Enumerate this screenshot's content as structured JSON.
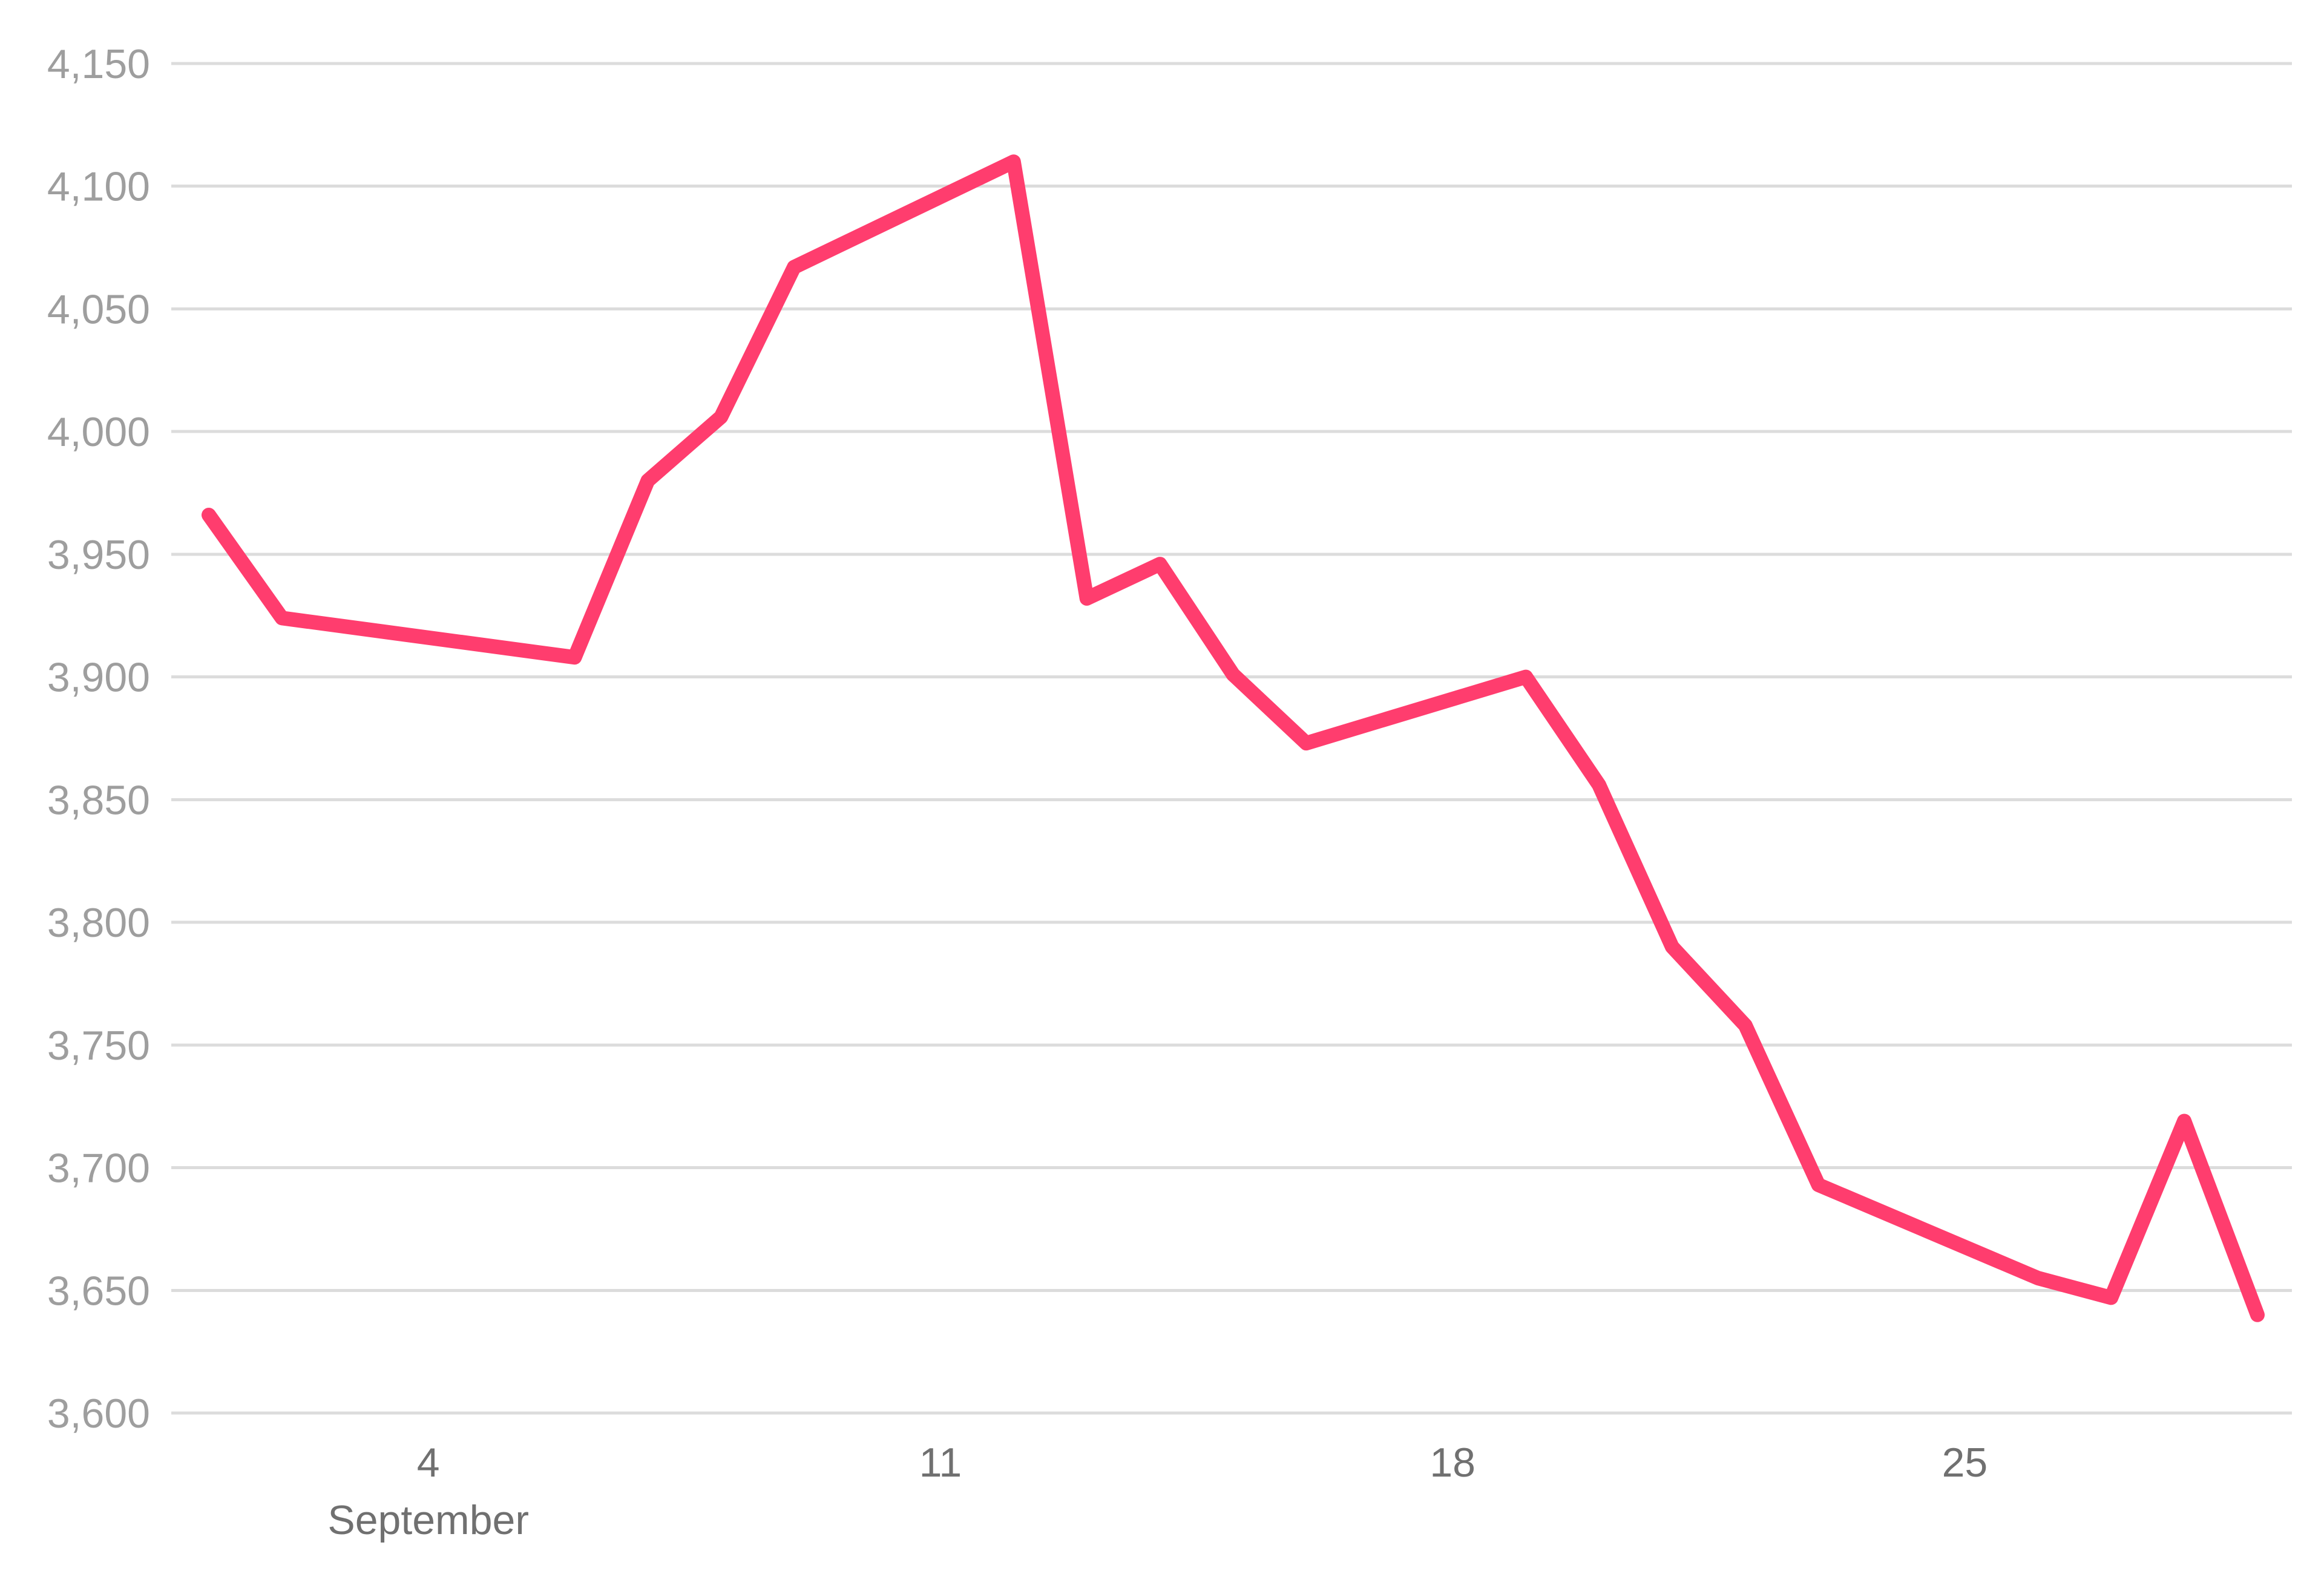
{
  "chart_data": {
    "type": "line",
    "title": "",
    "xlabel": "",
    "ylabel": "",
    "x_axis_type": "date",
    "x": [
      "2023-09-01",
      "2023-09-02",
      "2023-09-06",
      "2023-09-07",
      "2023-09-08",
      "2023-09-09",
      "2023-09-12",
      "2023-09-13",
      "2023-09-14",
      "2023-09-15",
      "2023-09-16",
      "2023-09-19",
      "2023-09-20",
      "2023-09-21",
      "2023-09-22",
      "2023-09-23",
      "2023-09-26",
      "2023-09-27",
      "2023-09-28",
      "2023-09-29"
    ],
    "series": [
      {
        "color": "#ff3d6e",
        "values": [
          3966,
          3924,
          3908,
          3980,
          4006,
          4067,
          4110,
          3932,
          3946,
          3901,
          3873,
          3900,
          3856,
          3790,
          3758,
          3693,
          3655,
          3647,
          3719,
          3640
        ]
      }
    ],
    "ylim": [
      3600,
      4150
    ],
    "y_ticks": [
      3600,
      3650,
      3700,
      3750,
      3800,
      3850,
      3900,
      3950,
      4000,
      4050,
      4100,
      4150
    ],
    "y_tick_labels": [
      "3,600",
      "3,650",
      "3,700",
      "3,750",
      "3,800",
      "3,850",
      "3,900",
      "3,950",
      "4,000",
      "4,050",
      "4,100",
      "4,150"
    ],
    "x_ticks": [
      "2023-09-04",
      "2023-09-11",
      "2023-09-18",
      "2023-09-25"
    ],
    "x_tick_labels": [
      "4",
      "11",
      "18",
      "25"
    ],
    "x_month_label": "September",
    "grid": true,
    "legend": "none"
  }
}
